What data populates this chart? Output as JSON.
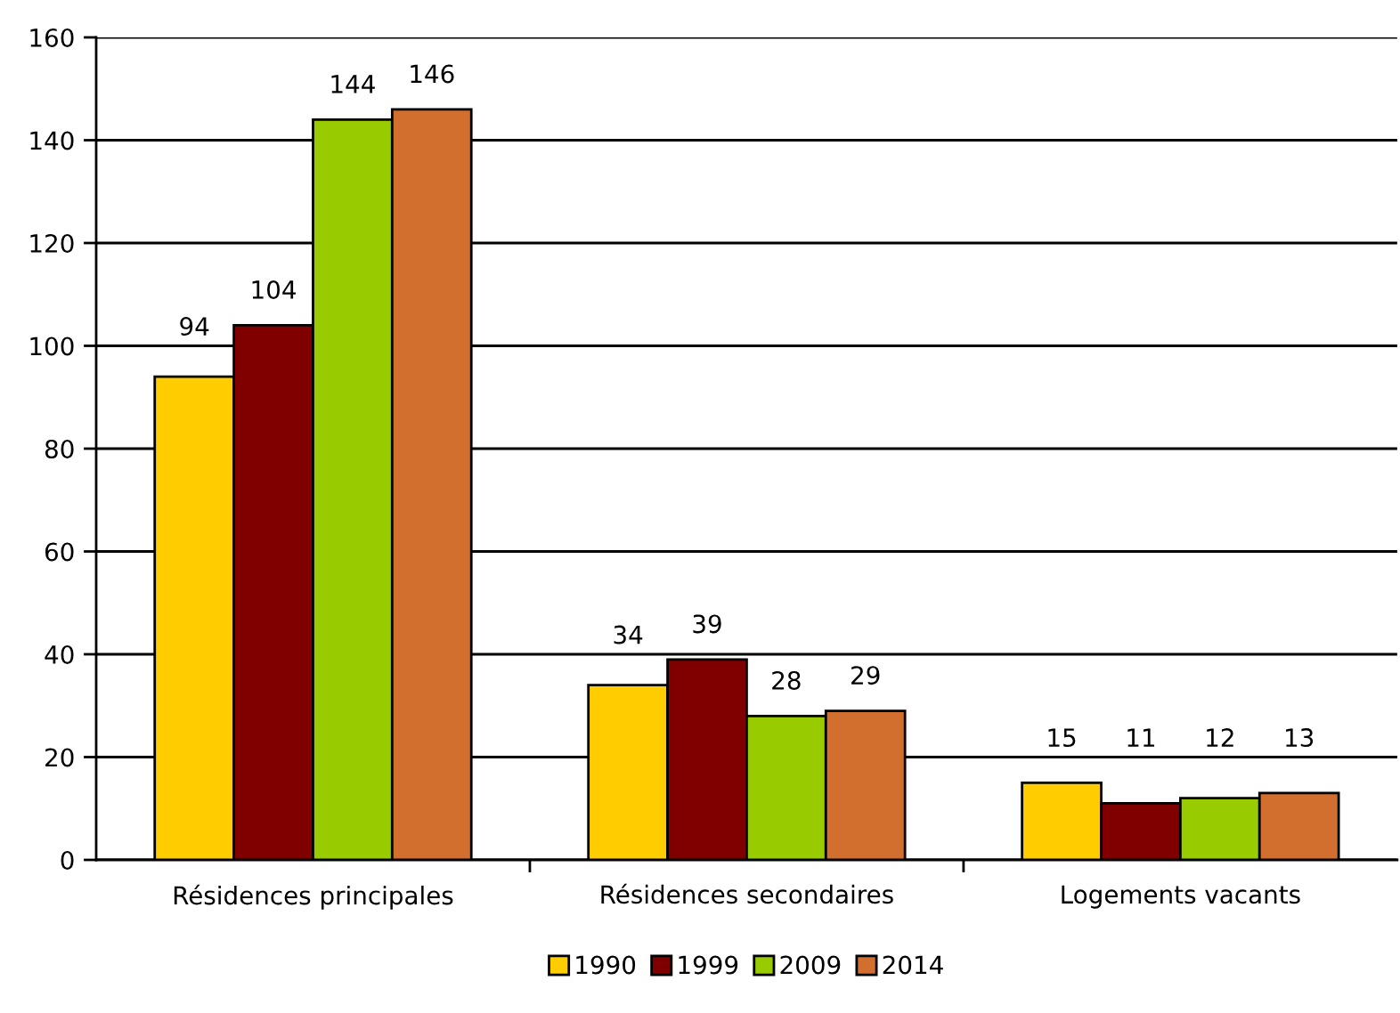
{
  "chart_data": {
    "type": "bar",
    "categories": [
      "Résidences principales",
      "Résidences secondaires",
      "Logements vacants"
    ],
    "series": [
      {
        "name": "1990",
        "color": "#ffcc00",
        "values": [
          94,
          34,
          15
        ]
      },
      {
        "name": "1999",
        "color": "#800000",
        "values": [
          104,
          39,
          11
        ]
      },
      {
        "name": "2009",
        "color": "#99cc00",
        "values": [
          144,
          28,
          12
        ]
      },
      {
        "name": "2014",
        "color": "#d26e2e",
        "values": [
          146,
          29,
          13
        ]
      }
    ],
    "ylim": [
      0,
      160
    ],
    "yticks": [
      0,
      20,
      40,
      60,
      80,
      100,
      120,
      140,
      160
    ],
    "grid": "y",
    "legend": "bottom",
    "data_labels": true
  }
}
